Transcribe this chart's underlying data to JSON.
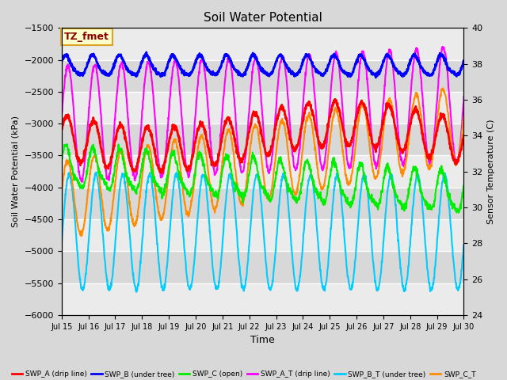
{
  "title": "Soil Water Potential",
  "xlabel": "Time",
  "ylabel_left": "Soil Water Potential (kPa)",
  "ylabel_right": "Sensor Temperature (C)",
  "ylim_left": [
    -6000,
    -1500
  ],
  "ylim_right": [
    24,
    40
  ],
  "yticks_left": [
    -6000,
    -5500,
    -5000,
    -4500,
    -4000,
    -3500,
    -3000,
    -2500,
    -2000,
    -1500
  ],
  "yticks_right": [
    24,
    26,
    28,
    30,
    32,
    34,
    36,
    38,
    40
  ],
  "x_tick_days": [
    15,
    16,
    17,
    18,
    19,
    20,
    21,
    22,
    23,
    24,
    25,
    26,
    27,
    28,
    29,
    30
  ],
  "annotation_text": "TZ_fmet",
  "annotation_color": "#8B0000",
  "annotation_bg": "#FFFFCC",
  "annotation_border": "#DAA520",
  "colors": {
    "SWP_A": "#FF0000",
    "SWP_B": "#0000FF",
    "SWP_C": "#00EE00",
    "SWP_A_T": "#FF00FF",
    "SWP_B_T": "#00CCFF",
    "SWP_C_T": "#FF8C00"
  },
  "legend_labels": [
    "SWP_A (drip line)",
    "SWP_B (under tree)",
    "SWP_C (open)",
    "SWP_A_T (drip line)",
    "SWP_B_T (under tree)",
    "SWP_C_T"
  ],
  "bg_color": "#D8D8D8",
  "grid_color": "#FFFFFF",
  "linewidth": 1.5,
  "figsize": [
    6.4,
    4.8
  ],
  "dpi": 100
}
